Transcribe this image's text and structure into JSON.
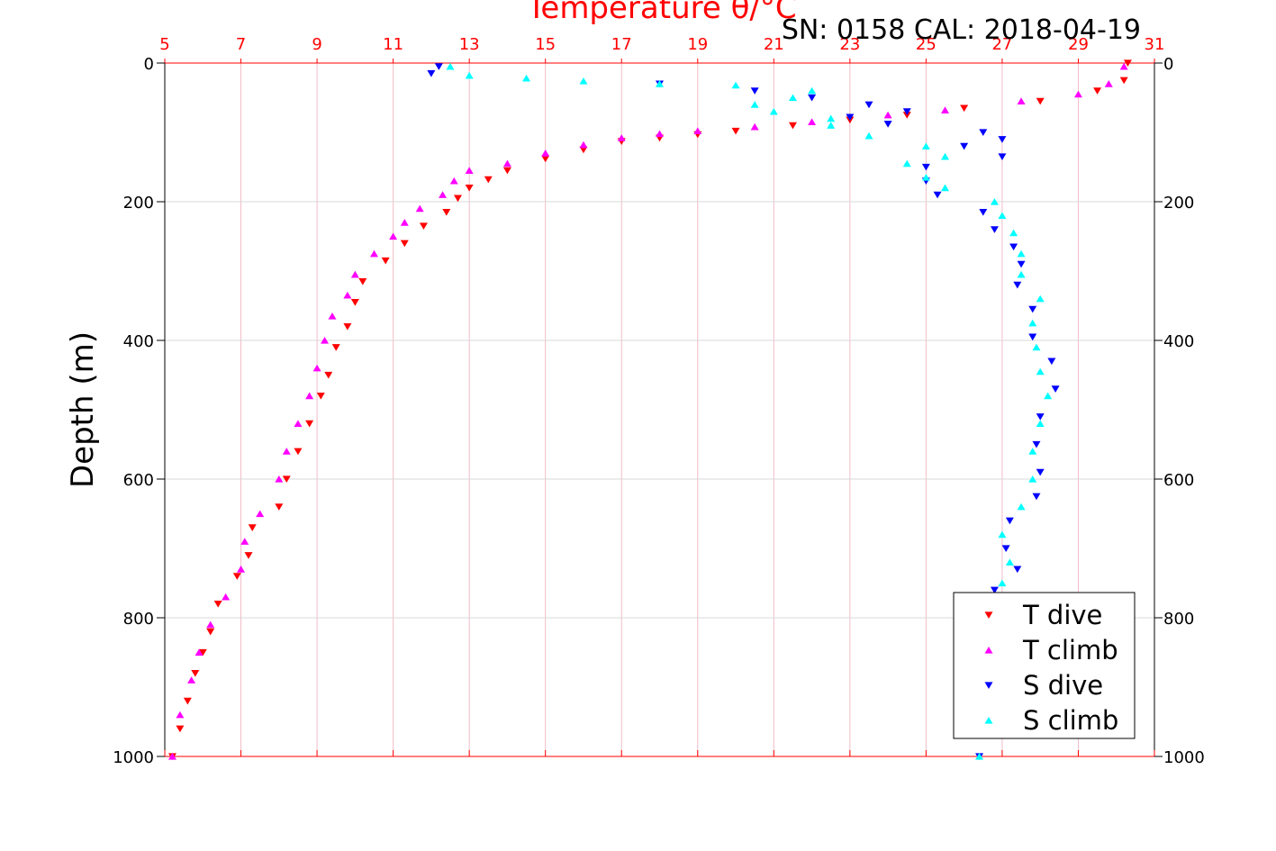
{
  "header": {
    "serial": "SN: 0158  CAL: 2018-04-19"
  },
  "chart_data": {
    "type": "scatter",
    "title": "Temperature θ/°C",
    "xlabel": "Temperature θ/°C",
    "ylabel": "Depth (m)",
    "xlim": [
      5,
      31
    ],
    "ylim": [
      0,
      1000
    ],
    "y_reversed": true,
    "x_ticks": [
      "5",
      "7",
      "9",
      "11",
      "13",
      "15",
      "17",
      "19",
      "21",
      "23",
      "25",
      "27",
      "29",
      "31"
    ],
    "y_ticks": [
      "0",
      "200",
      "400",
      "600",
      "800",
      "1000"
    ],
    "grid": true,
    "legend_position": "bottom-right",
    "series": [
      {
        "name": "T dive",
        "marker": "triangle-down",
        "color": "#ff0000",
        "points": [
          [
            30.3,
            0
          ],
          [
            30.2,
            25
          ],
          [
            29.5,
            40
          ],
          [
            28.0,
            55
          ],
          [
            26.0,
            65
          ],
          [
            24.5,
            75
          ],
          [
            23.0,
            82
          ],
          [
            21.5,
            90
          ],
          [
            20.0,
            98
          ],
          [
            19.0,
            103
          ],
          [
            18.0,
            108
          ],
          [
            17.0,
            113
          ],
          [
            16.0,
            125
          ],
          [
            15.0,
            138
          ],
          [
            14.0,
            155
          ],
          [
            13.5,
            168
          ],
          [
            13.0,
            180
          ],
          [
            12.7,
            195
          ],
          [
            12.4,
            215
          ],
          [
            11.8,
            235
          ],
          [
            11.3,
            260
          ],
          [
            10.8,
            285
          ],
          [
            10.2,
            315
          ],
          [
            10.0,
            345
          ],
          [
            9.8,
            380
          ],
          [
            9.5,
            410
          ],
          [
            9.3,
            450
          ],
          [
            9.1,
            480
          ],
          [
            8.8,
            520
          ],
          [
            8.5,
            560
          ],
          [
            8.2,
            600
          ],
          [
            8.0,
            640
          ],
          [
            7.3,
            670
          ],
          [
            7.2,
            710
          ],
          [
            6.9,
            740
          ],
          [
            6.4,
            780
          ],
          [
            6.2,
            820
          ],
          [
            6.0,
            850
          ],
          [
            5.8,
            880
          ],
          [
            5.6,
            920
          ],
          [
            5.4,
            960
          ],
          [
            5.2,
            1000
          ]
        ]
      },
      {
        "name": "T climb",
        "marker": "triangle-up",
        "color": "#ff00ff",
        "points": [
          [
            30.2,
            5
          ],
          [
            29.8,
            30
          ],
          [
            29.0,
            45
          ],
          [
            27.5,
            55
          ],
          [
            25.5,
            68
          ],
          [
            24.0,
            75
          ],
          [
            22.0,
            85
          ],
          [
            20.5,
            92
          ],
          [
            19.0,
            98
          ],
          [
            18.0,
            102
          ],
          [
            17.0,
            108
          ],
          [
            16.0,
            118
          ],
          [
            15.0,
            130
          ],
          [
            14.0,
            145
          ],
          [
            13.0,
            155
          ],
          [
            12.6,
            170
          ],
          [
            12.3,
            190
          ],
          [
            11.7,
            210
          ],
          [
            11.3,
            230
          ],
          [
            11.0,
            250
          ],
          [
            10.5,
            275
          ],
          [
            10.0,
            305
          ],
          [
            9.8,
            335
          ],
          [
            9.4,
            365
          ],
          [
            9.2,
            400
          ],
          [
            9.0,
            440
          ],
          [
            8.8,
            480
          ],
          [
            8.5,
            520
          ],
          [
            8.2,
            560
          ],
          [
            8.0,
            600
          ],
          [
            7.5,
            650
          ],
          [
            7.1,
            690
          ],
          [
            7.0,
            730
          ],
          [
            6.6,
            770
          ],
          [
            6.2,
            810
          ],
          [
            5.9,
            850
          ],
          [
            5.7,
            890
          ],
          [
            5.4,
            940
          ],
          [
            5.2,
            1000
          ]
        ]
      },
      {
        "name": "S dive",
        "marker": "triangle-down",
        "color": "#0000ff",
        "points": [
          [
            12.2,
            5
          ],
          [
            12.0,
            15
          ],
          [
            18.0,
            30
          ],
          [
            20.5,
            40
          ],
          [
            22.0,
            50
          ],
          [
            23.5,
            60
          ],
          [
            24.5,
            70
          ],
          [
            23.0,
            78
          ],
          [
            24.0,
            88
          ],
          [
            26.5,
            100
          ],
          [
            27.0,
            110
          ],
          [
            26.0,
            120
          ],
          [
            27.0,
            135
          ],
          [
            25.0,
            150
          ],
          [
            25.0,
            170
          ],
          [
            25.3,
            190
          ],
          [
            26.5,
            215
          ],
          [
            26.8,
            240
          ],
          [
            27.3,
            265
          ],
          [
            27.5,
            290
          ],
          [
            27.4,
            320
          ],
          [
            27.8,
            355
          ],
          [
            27.8,
            395
          ],
          [
            28.3,
            430
          ],
          [
            28.4,
            470
          ],
          [
            28.0,
            510
          ],
          [
            27.9,
            550
          ],
          [
            28.0,
            590
          ],
          [
            27.9,
            625
          ],
          [
            27.2,
            660
          ],
          [
            27.1,
            700
          ],
          [
            27.4,
            730
          ],
          [
            26.8,
            760
          ],
          [
            26.6,
            800
          ],
          [
            26.5,
            860
          ],
          [
            26.5,
            920
          ],
          [
            26.4,
            1000
          ]
        ]
      },
      {
        "name": "S climb",
        "marker": "triangle-up",
        "color": "#00ffff",
        "points": [
          [
            12.5,
            5
          ],
          [
            13.0,
            18
          ],
          [
            14.5,
            22
          ],
          [
            16.0,
            26
          ],
          [
            18.0,
            30
          ],
          [
            20.0,
            32
          ],
          [
            22.0,
            40
          ],
          [
            21.5,
            50
          ],
          [
            20.5,
            60
          ],
          [
            21.0,
            70
          ],
          [
            22.5,
            80
          ],
          [
            22.5,
            90
          ],
          [
            23.5,
            105
          ],
          [
            25.0,
            120
          ],
          [
            25.5,
            135
          ],
          [
            24.5,
            145
          ],
          [
            25.0,
            165
          ],
          [
            25.5,
            180
          ],
          [
            26.8,
            200
          ],
          [
            27.0,
            220
          ],
          [
            27.3,
            245
          ],
          [
            27.5,
            275
          ],
          [
            27.5,
            305
          ],
          [
            28.0,
            340
          ],
          [
            27.8,
            375
          ],
          [
            27.9,
            410
          ],
          [
            28.0,
            445
          ],
          [
            28.2,
            480
          ],
          [
            28.0,
            520
          ],
          [
            27.8,
            560
          ],
          [
            27.8,
            600
          ],
          [
            27.5,
            640
          ],
          [
            27.0,
            680
          ],
          [
            27.2,
            720
          ],
          [
            27.0,
            750
          ],
          [
            26.7,
            780
          ],
          [
            26.6,
            820
          ],
          [
            26.5,
            870
          ],
          [
            26.4,
            930
          ],
          [
            26.4,
            1000
          ]
        ]
      }
    ]
  }
}
